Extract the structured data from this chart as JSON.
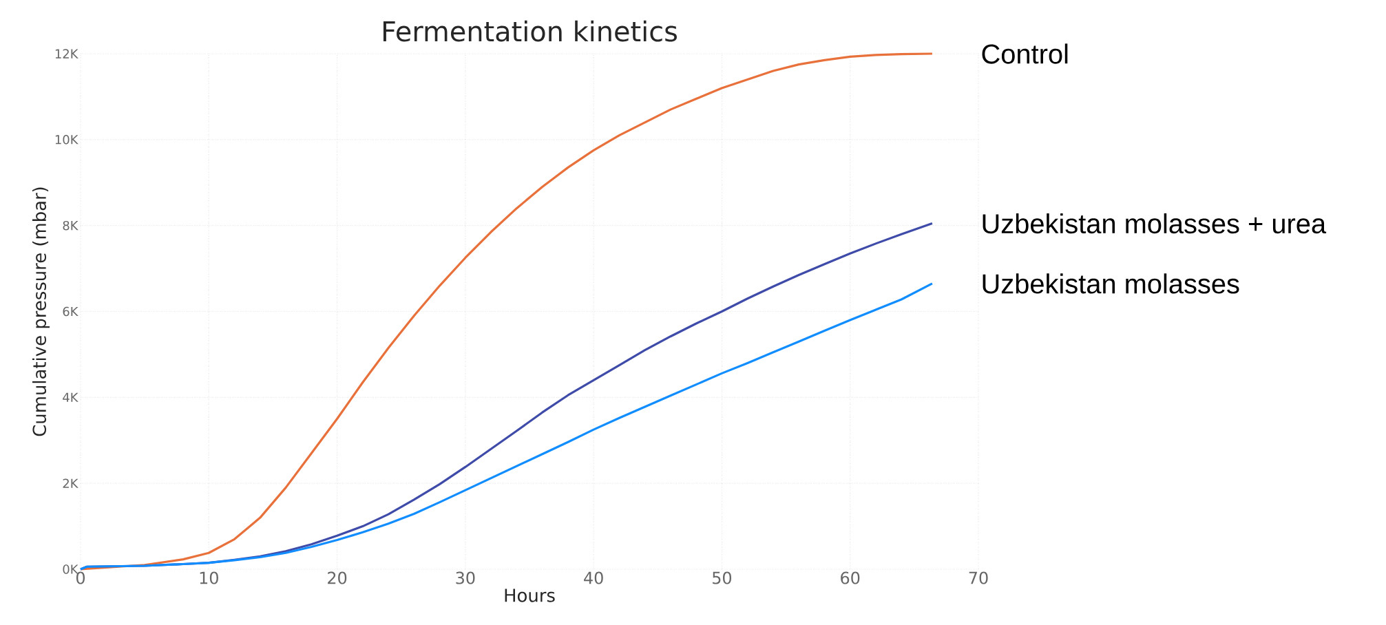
{
  "chart_data": {
    "type": "line",
    "title": "Fermentation kinetics",
    "xlabel": "Hours",
    "ylabel": "Cumulative pressure (mbar)",
    "x": [
      0,
      0.5,
      5,
      8,
      10,
      12,
      14,
      16,
      18,
      20,
      22,
      24,
      26,
      28,
      30,
      32,
      34,
      36,
      38,
      40,
      42,
      44,
      46,
      48,
      50,
      52,
      54,
      56,
      58,
      60,
      62,
      64,
      66.4
    ],
    "series": [
      {
        "name": "Control",
        "color": "#e8703a",
        "values": [
          0,
          null,
          100,
          230,
          380,
          700,
          1200,
          1900,
          2700,
          3500,
          4350,
          5150,
          5900,
          6600,
          7250,
          7850,
          8400,
          8900,
          9350,
          9750,
          10100,
          10400,
          10700,
          10950,
          11200,
          11400,
          11600,
          11750,
          11850,
          11930,
          11970,
          11990,
          12000
        ]
      },
      {
        "name": "Uzbekistan molasses + urea",
        "color": "#3f4ba8",
        "values": [
          0,
          60,
          80,
          120,
          150,
          220,
          300,
          420,
          580,
          780,
          1000,
          1280,
          1620,
          1980,
          2380,
          2800,
          3220,
          3650,
          4050,
          4400,
          4750,
          5100,
          5420,
          5720,
          6000,
          6300,
          6580,
          6850,
          7100,
          7350,
          7580,
          7800,
          8050
        ]
      },
      {
        "name": "Uzbekistan molasses",
        "color": "#118dff",
        "values": [
          0,
          60,
          80,
          120,
          150,
          210,
          280,
          380,
          520,
          680,
          860,
          1060,
          1290,
          1560,
          1840,
          2120,
          2400,
          2680,
          2960,
          3250,
          3520,
          3780,
          4040,
          4300,
          4560,
          4800,
          5050,
          5300,
          5550,
          5800,
          6040,
          6280,
          6650
        ]
      }
    ],
    "xlim": [
      0,
      70
    ],
    "xticks": [
      0,
      10,
      20,
      30,
      40,
      50,
      60,
      70
    ],
    "ylim": [
      0,
      12000
    ],
    "yticks": [
      {
        "value": 0,
        "label": "0K"
      },
      {
        "value": 2000,
        "label": "2K"
      },
      {
        "value": 4000,
        "label": "4K"
      },
      {
        "value": 6000,
        "label": "6K"
      },
      {
        "value": 8000,
        "label": "8K"
      },
      {
        "value": 10000,
        "label": "10K"
      },
      {
        "value": 12000,
        "label": "12K"
      }
    ],
    "grid": true,
    "line_style": "solid",
    "marker": "none"
  }
}
